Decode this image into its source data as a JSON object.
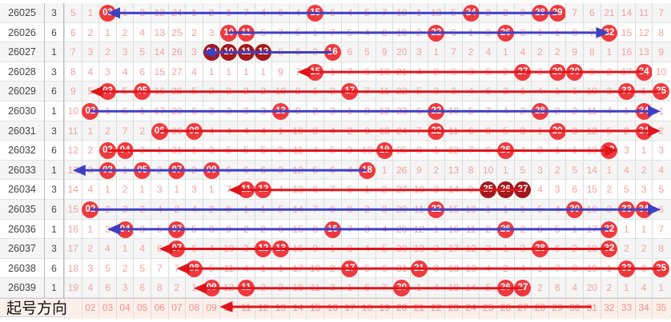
{
  "colors": {
    "hit": "#ee3a3f",
    "repeat": "#a1191c",
    "blue_arrow": "#3f3fc4",
    "red_arrow": "#e0151c",
    "miss_text": "#f2a0a0"
  },
  "rows": [
    {
      "issue": "26025",
      "n": "3",
      "cells": [
        "5",
        "1",
        "03",
        "1",
        "3",
        "12",
        "24",
        "1",
        "2",
        "1",
        "7",
        "4",
        "6",
        "4",
        "15",
        "6",
        "4",
        "5",
        "7",
        "18",
        "1",
        "13",
        "5",
        "24",
        "2",
        "2",
        "2",
        "28",
        "29",
        "7",
        "6",
        "21",
        "14",
        "11",
        "7"
      ],
      "hits": [
        3,
        15,
        24,
        28,
        29
      ],
      "dark": []
    },
    {
      "issue": "26026",
      "n": "6",
      "cells": [
        "6",
        "2",
        "1",
        "2",
        "4",
        "13",
        "25",
        "2",
        "3",
        "10",
        "11",
        "5",
        "7",
        "5",
        "1",
        "7",
        "5",
        "4",
        "8",
        "19",
        "2",
        "22",
        "6",
        "1",
        "3",
        "26",
        "3",
        "1",
        "1",
        "8",
        "7",
        "32",
        "15",
        "12",
        "8"
      ],
      "hits": [
        10,
        11,
        22,
        26,
        32
      ],
      "dark": []
    },
    {
      "issue": "26027",
      "n": "1",
      "cells": [
        "7",
        "3",
        "2",
        "3",
        "5",
        "14",
        "26",
        "3",
        "09",
        "10",
        "11",
        "12",
        "8",
        "6",
        "2",
        "16",
        "6",
        "5",
        "9",
        "20",
        "3",
        "1",
        "7",
        "2",
        "4",
        "1",
        "4",
        "2",
        "2",
        "9",
        "8",
        "1",
        "16",
        "13",
        "9"
      ],
      "hits": [
        9,
        10,
        11,
        12,
        16
      ],
      "dark": [
        9,
        10,
        11,
        12
      ]
    },
    {
      "issue": "26028",
      "n": "3",
      "cells": [
        "8",
        "4",
        "3",
        "4",
        "6",
        "15",
        "27",
        "4",
        "1",
        "1",
        "1",
        "1",
        "9",
        "7",
        "15",
        "1",
        "7",
        "6",
        "10",
        "21",
        "4",
        "2",
        "8",
        "3",
        "5",
        "2",
        "27",
        "3",
        "29",
        "30",
        "9",
        "2",
        "17",
        "34",
        "10"
      ],
      "hits": [
        15,
        27,
        29,
        30,
        34
      ],
      "dark": []
    },
    {
      "issue": "26029",
      "n": "6",
      "cells": [
        "9",
        "5",
        "03",
        "5",
        "05",
        "16",
        "28",
        "5",
        "2",
        "2",
        "2",
        "2",
        "10",
        "8",
        "1",
        "2",
        "17",
        "7",
        "11",
        "22",
        "5",
        "3",
        "3",
        "4",
        "6",
        "3",
        "1",
        "4",
        "1",
        "1",
        "10",
        "3",
        "33",
        "1",
        "35"
      ],
      "hits": [
        3,
        5,
        17,
        33,
        35
      ],
      "dark": []
    },
    {
      "issue": "26030",
      "n": "1",
      "cells": [
        "10",
        "02",
        "1",
        "6",
        "1",
        "17",
        "29",
        "6",
        "3",
        "3",
        "3",
        "3",
        "13",
        "8",
        "2",
        "3",
        "1",
        "8",
        "12",
        "23",
        "6",
        "22",
        "10",
        "5",
        "7",
        "4",
        "2",
        "28",
        "2",
        "2",
        "11",
        "4",
        "1",
        "34",
        "1"
      ],
      "hits": [
        2,
        13,
        22,
        28,
        34
      ],
      "dark": []
    },
    {
      "issue": "26031",
      "n": "3",
      "cells": [
        "11",
        "1",
        "2",
        "7",
        "2",
        "06",
        "30",
        "08",
        "4",
        "4",
        "4",
        "4",
        "1",
        "10",
        "3",
        "4",
        "2",
        "9",
        "13",
        "24",
        "7",
        "22",
        "11",
        "6",
        "8",
        "5",
        "3",
        "1",
        "29",
        "3",
        "12",
        "5",
        "2",
        "34",
        "2"
      ],
      "hits": [
        6,
        8,
        22,
        29,
        34
      ],
      "dark": []
    },
    {
      "issue": "26032",
      "n": "6",
      "cells": [
        "12",
        "2",
        "03",
        "04",
        "3",
        "1",
        "31",
        "1",
        "3",
        "5",
        "5",
        "5",
        "2",
        "11",
        "4",
        "5",
        "3",
        "10",
        "19",
        "25",
        "8",
        "1",
        "12",
        "7",
        "9",
        "26",
        "4",
        "2",
        "1",
        "1",
        "13",
        "32",
        "3",
        "1",
        "3"
      ],
      "hits": [
        3,
        4,
        19,
        26,
        32
      ],
      "dark": []
    },
    {
      "issue": "26033",
      "n": "1",
      "cells": [
        "13",
        "3",
        "03",
        "1",
        "05",
        "2",
        "07",
        "2",
        "09",
        "6",
        "6",
        "6",
        "3",
        "12",
        "5",
        "6",
        "4",
        "18",
        "1",
        "26",
        "9",
        "2",
        "13",
        "8",
        "10",
        "1",
        "5",
        "3",
        "2",
        "5",
        "14",
        "1",
        "4",
        "2",
        "4"
      ],
      "hits": [
        3,
        5,
        7,
        9,
        18
      ],
      "dark": []
    },
    {
      "issue": "26034",
      "n": "3",
      "cells": [
        "14",
        "4",
        "1",
        "2",
        "1",
        "3",
        "1",
        "3",
        "1",
        "7",
        "11",
        "12",
        "4",
        "13",
        "6",
        "7",
        "5",
        "1",
        "2",
        "27",
        "10",
        "3",
        "14",
        "9",
        "25",
        "26",
        "27",
        "4",
        "3",
        "6",
        "15",
        "2",
        "5",
        "3",
        "5"
      ],
      "hits": [
        11,
        12,
        25,
        26,
        27
      ],
      "dark": [
        25,
        26,
        27
      ]
    },
    {
      "issue": "26035",
      "n": "6",
      "cells": [
        "15",
        "02",
        "2",
        "3",
        "2",
        "4",
        "2",
        "4",
        "2",
        "8",
        "1",
        "1",
        "5",
        "14",
        "7",
        "8",
        "8",
        "2",
        "3",
        "20",
        "11",
        "22",
        "15",
        "10",
        "1",
        "1",
        "1",
        "5",
        "4",
        "30",
        "10",
        "3",
        "33",
        "34",
        "6"
      ],
      "hits": [
        2,
        22,
        30,
        33,
        34
      ],
      "dark": []
    },
    {
      "issue": "26036",
      "n": "1",
      "cells": [
        "16",
        "1",
        "3",
        "04",
        "3",
        "5",
        "07",
        "5",
        "3",
        "9",
        "2",
        "2",
        "6",
        "15",
        "8",
        "16",
        "7",
        "3",
        "4",
        "20",
        "12",
        "1",
        "16",
        "11",
        "2",
        "26",
        "2",
        "6",
        "5",
        "1",
        "17",
        "32",
        "1",
        "1",
        "7"
      ],
      "hits": [
        4,
        7,
        16,
        26,
        32
      ],
      "dark": []
    },
    {
      "issue": "26037",
      "n": "3",
      "cells": [
        "17",
        "2",
        "4",
        "1",
        "4",
        "6",
        "07",
        "6",
        "4",
        "10",
        "3",
        "12",
        "13",
        "16",
        "9",
        "1",
        "8",
        "4",
        "5",
        "30",
        "13",
        "2",
        "17",
        "12",
        "3",
        "1",
        "3",
        "28",
        "6",
        "2",
        "18",
        "32",
        "2",
        "2",
        "8"
      ],
      "hits": [
        7,
        12,
        13,
        28,
        32
      ],
      "dark": []
    },
    {
      "issue": "26038",
      "n": "6",
      "cells": [
        "18",
        "3",
        "5",
        "2",
        "5",
        "7",
        "7",
        "08",
        "5",
        "11",
        "4",
        "1",
        "1",
        "17",
        "10",
        "2",
        "17",
        "5",
        "6",
        "31",
        "21",
        "3",
        "18",
        "13",
        "4",
        "2",
        "4",
        "1",
        "7",
        "3",
        "19",
        "1",
        "33",
        "3",
        "35"
      ],
      "hits": [
        8,
        17,
        21,
        33,
        35
      ],
      "dark": []
    },
    {
      "issue": "26039",
      "n": "1",
      "cells": [
        "19",
        "4",
        "6",
        "3",
        "6",
        "8",
        "2",
        "1",
        "09",
        "12",
        "11",
        "2",
        "2",
        "18",
        "11",
        "3",
        "1",
        "6",
        "7",
        "20",
        "1",
        "4",
        "19",
        "14",
        "5",
        "26",
        "27",
        "2",
        "8",
        "4",
        "20",
        "2",
        "1",
        "4",
        "1"
      ],
      "hits": [
        9,
        11,
        20,
        26,
        27
      ],
      "dark": []
    }
  ],
  "footer": {
    "label": "起号方向",
    "numbers": [
      "",
      "02",
      "03",
      "04",
      "05",
      "06",
      "07",
      "08",
      "09",
      "10",
      "11",
      "12",
      "13",
      "14",
      "15",
      "16",
      "17",
      "18",
      "19",
      "20",
      "21",
      "22",
      "23",
      "24",
      "25",
      "26",
      "27",
      "28",
      "29",
      "30",
      "31",
      "32",
      "33",
      "34",
      "35"
    ]
  },
  "arrows": [
    {
      "row": 0,
      "from": 29,
      "to": 3,
      "color": "blue"
    },
    {
      "row": 1,
      "from": 10,
      "to": 32,
      "color": "blue"
    },
    {
      "row": 2,
      "from": 16,
      "to": 8.5,
      "color": "blue"
    },
    {
      "row": 3,
      "from": 34,
      "to": 14,
      "color": "red"
    },
    {
      "row": 4,
      "from": 35,
      "to": 2,
      "color": "red"
    },
    {
      "row": 5,
      "from": 2,
      "to": 35,
      "color": "blue"
    },
    {
      "row": 6,
      "from": 6,
      "to": 35,
      "color": "red"
    },
    {
      "row": 7,
      "from": 3,
      "to": 32.5,
      "color": "red"
    },
    {
      "row": 8,
      "from": 18,
      "to": 1,
      "color": "blue"
    },
    {
      "row": 9,
      "from": 27,
      "to": 10,
      "color": "red"
    },
    {
      "row": 10,
      "from": 2,
      "to": 35,
      "color": "blue"
    },
    {
      "row": 11,
      "from": 32,
      "to": 3,
      "color": "blue"
    },
    {
      "row": 12,
      "from": 32,
      "to": 6,
      "color": "red"
    },
    {
      "row": 13,
      "from": 35,
      "to": 7,
      "color": "red"
    },
    {
      "row": 14,
      "from": 27,
      "to": 8,
      "color": "red"
    },
    {
      "row": 15,
      "from": 31,
      "to": 9.5,
      "color": "red"
    }
  ]
}
